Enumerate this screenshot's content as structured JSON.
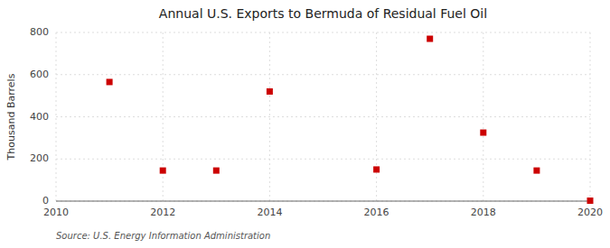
{
  "chart_data": {
    "type": "scatter",
    "title": "Annual U.S. Exports to Bermuda of Residual Fuel Oil",
    "ylabel": "Thousand Barrels",
    "source": "Source: U.S. Energy Information Administration",
    "x": [
      2011,
      2012,
      2013,
      2014,
      2016,
      2017,
      2018,
      2019,
      2020
    ],
    "values": [
      565,
      145,
      145,
      520,
      150,
      770,
      325,
      145,
      2
    ],
    "color": "#cc0000",
    "marker": "square",
    "xlim": [
      2010,
      2020
    ],
    "ylim": [
      0,
      800
    ],
    "xticks": [
      2010,
      2012,
      2014,
      2016,
      2018,
      2020
    ],
    "yticks": [
      0,
      200,
      400,
      600,
      800
    ],
    "grid": true
  }
}
